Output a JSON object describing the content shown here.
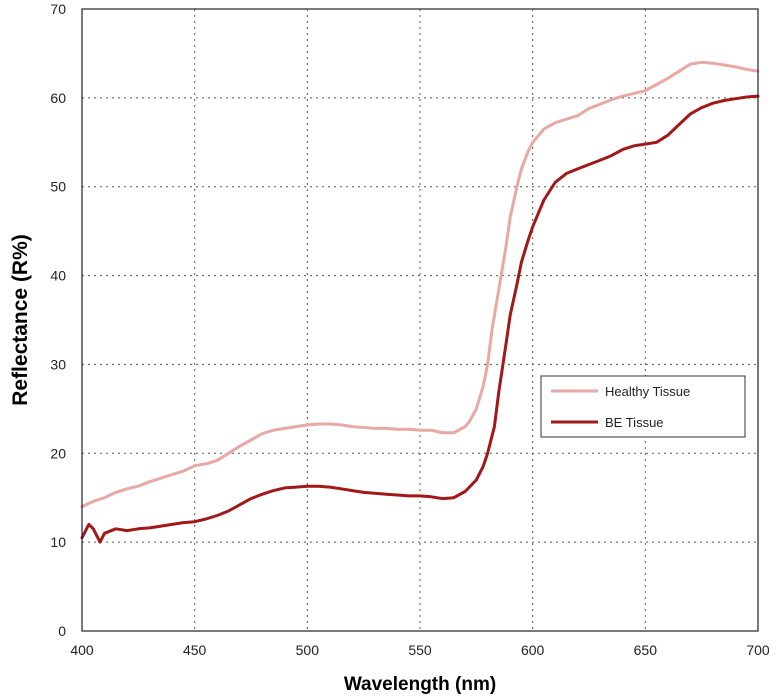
{
  "chart_data": {
    "type": "line",
    "title": "",
    "xlabel": "Wavelength (nm)",
    "ylabel": "Reflectance (R%)",
    "xlim": [
      400,
      700
    ],
    "ylim": [
      0,
      70
    ],
    "xticks": [
      400,
      450,
      500,
      550,
      600,
      650,
      700
    ],
    "yticks": [
      0,
      10,
      20,
      30,
      40,
      50,
      60,
      70
    ],
    "grid": "dotted",
    "legend_position": "right",
    "series": [
      {
        "name": "Healthy Tissue",
        "color": "#e8a8a4",
        "x": [
          400,
          405,
          410,
          415,
          420,
          425,
          430,
          435,
          440,
          445,
          450,
          455,
          460,
          465,
          470,
          475,
          480,
          485,
          490,
          495,
          500,
          505,
          510,
          515,
          520,
          525,
          530,
          535,
          540,
          545,
          550,
          555,
          560,
          565,
          570,
          572,
          575,
          578,
          580,
          582,
          585,
          588,
          590,
          593,
          595,
          598,
          600,
          605,
          610,
          615,
          620,
          625,
          630,
          635,
          640,
          645,
          650,
          655,
          660,
          665,
          670,
          675,
          680,
          685,
          690,
          695,
          700
        ],
        "y": [
          14,
          14.6,
          15,
          15.6,
          16,
          16.3,
          16.8,
          17.2,
          17.6,
          18,
          18.6,
          18.8,
          19.2,
          20,
          20.8,
          21.5,
          22.2,
          22.6,
          22.8,
          23,
          23.2,
          23.3,
          23.3,
          23.2,
          23,
          22.9,
          22.8,
          22.8,
          22.7,
          22.7,
          22.6,
          22.6,
          22.3,
          22.3,
          23,
          23.6,
          25,
          27.5,
          30,
          34,
          38.5,
          43,
          46.5,
          50,
          52,
          54,
          55,
          56.5,
          57.2,
          57.6,
          58,
          58.8,
          59.3,
          59.8,
          60.2,
          60.5,
          60.8,
          61.5,
          62.2,
          63,
          63.8,
          64,
          63.9,
          63.7,
          63.5,
          63.2,
          63
        ]
      },
      {
        "name": "BE Tissue",
        "color": "#a01818",
        "x": [
          400,
          403,
          405,
          408,
          410,
          415,
          420,
          425,
          430,
          435,
          440,
          445,
          450,
          455,
          460,
          465,
          470,
          475,
          480,
          485,
          490,
          495,
          500,
          505,
          510,
          515,
          520,
          525,
          530,
          535,
          540,
          545,
          550,
          555,
          560,
          565,
          570,
          575,
          578,
          580,
          583,
          585,
          588,
          590,
          593,
          595,
          598,
          600,
          605,
          610,
          615,
          620,
          625,
          630,
          635,
          640,
          645,
          650,
          655,
          660,
          665,
          670,
          675,
          680,
          685,
          690,
          695,
          700
        ],
        "y": [
          10.5,
          12,
          11.5,
          10,
          11,
          11.5,
          11.3,
          11.5,
          11.6,
          11.8,
          12,
          12.2,
          12.3,
          12.6,
          13,
          13.5,
          14.2,
          14.9,
          15.4,
          15.8,
          16.1,
          16.2,
          16.3,
          16.3,
          16.2,
          16,
          15.8,
          15.6,
          15.5,
          15.4,
          15.3,
          15.2,
          15.2,
          15.1,
          14.9,
          15,
          15.7,
          17,
          18.5,
          20,
          23,
          27,
          32,
          35.5,
          39,
          41.5,
          44,
          45.5,
          48.5,
          50.5,
          51.5,
          52,
          52.5,
          53,
          53.5,
          54.2,
          54.6,
          54.8,
          55,
          55.8,
          57,
          58.2,
          58.9,
          59.4,
          59.7,
          59.9,
          60.1,
          60.2
        ]
      }
    ]
  }
}
